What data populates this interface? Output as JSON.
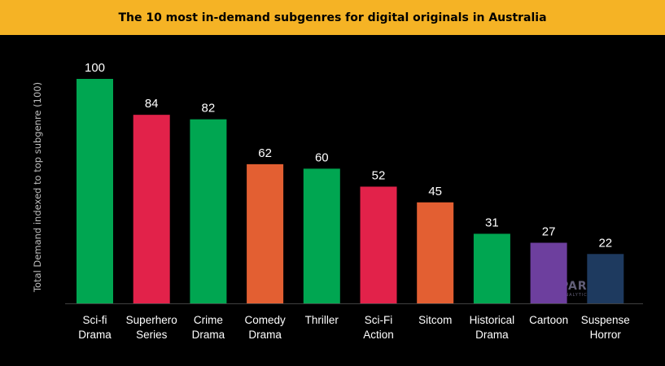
{
  "chart_data": {
    "type": "bar",
    "title": "The 10 most in-demand subgenres for digital originals in Australia",
    "ylabel": "Total Demand indexed to top subgenre (100)",
    "xlabel": "",
    "ylim": [
      0,
      100
    ],
    "grid": false,
    "categories": [
      [
        "Sci-fi",
        "Drama"
      ],
      [
        "Superhero",
        "Series"
      ],
      [
        "Crime",
        "Drama"
      ],
      [
        "Comedy",
        "Drama"
      ],
      [
        "Thriller"
      ],
      [
        "Sci-Fi",
        "Action"
      ],
      [
        "Sitcom"
      ],
      [
        "Historical",
        "Drama"
      ],
      [
        "Cartoon"
      ],
      [
        "Suspense",
        "Horror"
      ]
    ],
    "values": [
      100,
      84,
      82,
      62,
      60,
      52,
      45,
      31,
      27,
      22
    ],
    "colors": [
      "#00A651",
      "#E2224A",
      "#00A651",
      "#E35F32",
      "#00A651",
      "#E2224A",
      "#E35F32",
      "#00A651",
      "#6D3F9E",
      "#1E3A5F"
    ]
  },
  "watermark": {
    "brand": "PARROT",
    "sub": "ANALYTICS"
  }
}
